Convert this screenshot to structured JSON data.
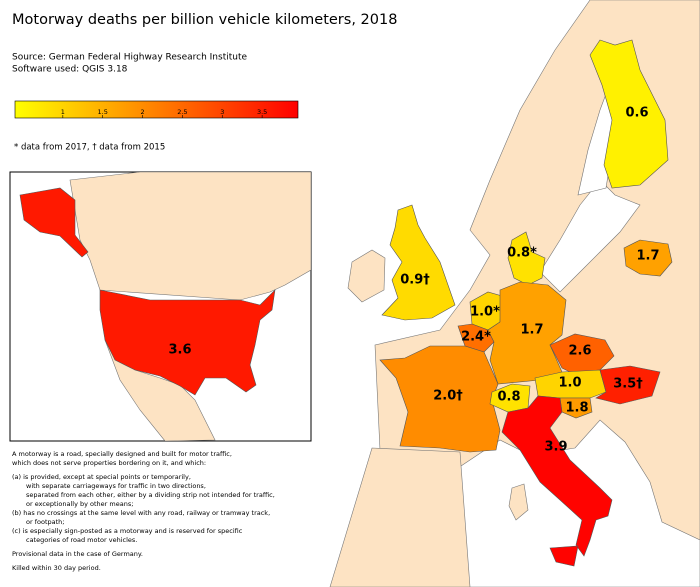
{
  "title": "Motorway deaths per billion vehicle kilometers, 2018",
  "source": "Source: German Federal Highway Research Institute",
  "software": "Software used: QGIS 3.18",
  "legend": {
    "lim": [
      0.4,
      3.95
    ],
    "ticks": [
      1,
      1.5,
      2,
      2.5,
      3,
      3.5
    ]
  },
  "footnote": "* data from 2017,   † data from 2015",
  "regions": [
    {
      "label": "3.6",
      "value": 3.6
    },
    {
      "label": "0.6",
      "value": 0.6
    },
    {
      "label": "0.9†",
      "value": 0.9
    },
    {
      "label": "0.8*",
      "value": 0.8
    },
    {
      "label": "1.7",
      "value": 1.7
    },
    {
      "label": "1.0*",
      "value": 1.0
    },
    {
      "label": "2.4*",
      "value": 2.4
    },
    {
      "label": "1.7",
      "value": 1.7
    },
    {
      "label": "2.6",
      "value": 2.6
    },
    {
      "label": "2.0†",
      "value": 2.0
    },
    {
      "label": "0.8",
      "value": 0.8
    },
    {
      "label": "1.0",
      "value": 1.0
    },
    {
      "label": "1.8",
      "value": 1.8
    },
    {
      "label": "3.5†",
      "value": 3.5
    },
    {
      "label": "3.9",
      "value": 3.9
    }
  ],
  "notes": [
    "A motorway is a road, specially designed and built for motor traffic,",
    "which does not serve properties bordering on it, and which:",
    "(a) is provided, except at special points or temporarily,",
    "with separate carriageways for traffic in two directions,",
    "separated from each other, either by a dividing strip not intended for traffic,",
    "or exceptionally by other means;",
    "(b) has no crossings at the same level with any road, railway or tramway track,",
    "or footpath;",
    "(c) is especially sign-posted as a motorway and is reserved for specific",
    "categories of road motor vehicles.",
    "Provisional data in the case of Germany.",
    "Killed within 30 day period."
  ]
}
